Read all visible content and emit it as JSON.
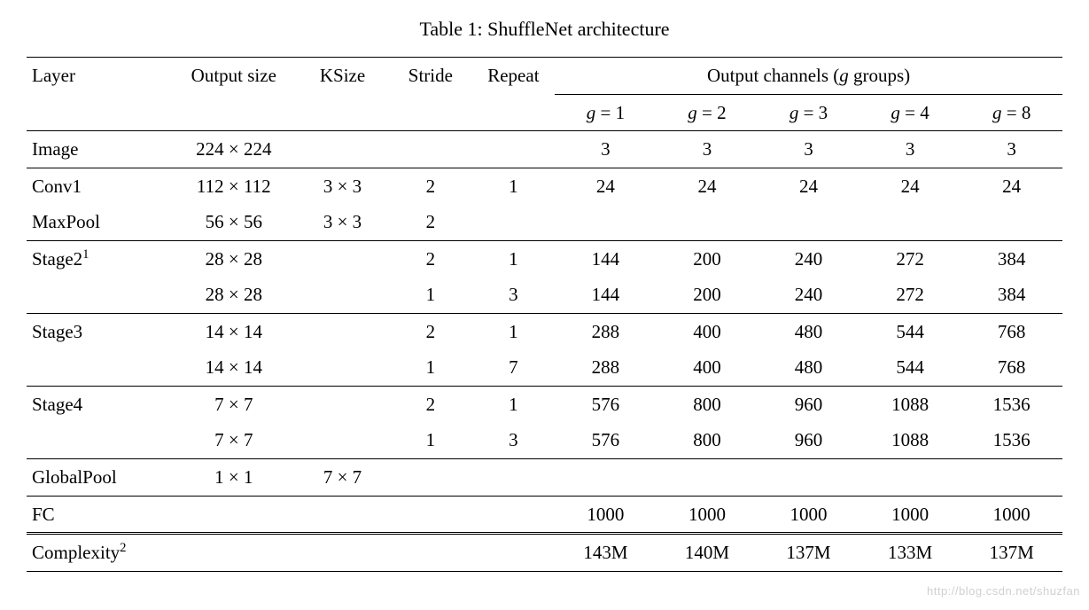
{
  "caption": "Table 1: ShuffleNet architecture",
  "headers": {
    "layer": "Layer",
    "output_size": "Output size",
    "ksize": "KSize",
    "stride": "Stride",
    "repeat": "Repeat",
    "group_title_prefix": "Output channels (",
    "group_title_var": "g",
    "group_title_suffix": " groups)",
    "g1": "g = 1",
    "g2": "g = 2",
    "g3": "g = 3",
    "g4": "g = 4",
    "g8": "g = 8"
  },
  "rows": {
    "image": {
      "layer": "Image",
      "osize": "224 × 224",
      "ksize": "",
      "stride": "",
      "repeat": "",
      "g1": "3",
      "g2": "3",
      "g3": "3",
      "g4": "3",
      "g8": "3"
    },
    "conv1": {
      "layer": "Conv1",
      "osize": "112 × 112",
      "ksize": "3 × 3",
      "stride": "2",
      "repeat": "1",
      "g1": "24",
      "g2": "24",
      "g3": "24",
      "g4": "24",
      "g8": "24"
    },
    "maxpool": {
      "layer": "MaxPool",
      "osize": "56 × 56",
      "ksize": "3 × 3",
      "stride": "2",
      "repeat": "",
      "g1": "",
      "g2": "",
      "g3": "",
      "g4": "",
      "g8": ""
    },
    "stage2a": {
      "layer_html": "Stage2",
      "sup": "1",
      "osize": "28 × 28",
      "ksize": "",
      "stride": "2",
      "repeat": "1",
      "g1": "144",
      "g2": "200",
      "g3": "240",
      "g4": "272",
      "g8": "384"
    },
    "stage2b": {
      "layer": "",
      "osize": "28 × 28",
      "ksize": "",
      "stride": "1",
      "repeat": "3",
      "g1": "144",
      "g2": "200",
      "g3": "240",
      "g4": "272",
      "g8": "384"
    },
    "stage3a": {
      "layer": "Stage3",
      "osize": "14 × 14",
      "ksize": "",
      "stride": "2",
      "repeat": "1",
      "g1": "288",
      "g2": "400",
      "g3": "480",
      "g4": "544",
      "g8": "768"
    },
    "stage3b": {
      "layer": "",
      "osize": "14 × 14",
      "ksize": "",
      "stride": "1",
      "repeat": "7",
      "g1": "288",
      "g2": "400",
      "g3": "480",
      "g4": "544",
      "g8": "768"
    },
    "stage4a": {
      "layer": "Stage4",
      "osize": "7 × 7",
      "ksize": "",
      "stride": "2",
      "repeat": "1",
      "g1": "576",
      "g2": "800",
      "g3": "960",
      "g4": "1088",
      "g8": "1536"
    },
    "stage4b": {
      "layer": "",
      "osize": "7 × 7",
      "ksize": "",
      "stride": "1",
      "repeat": "3",
      "g1": "576",
      "g2": "800",
      "g3": "960",
      "g4": "1088",
      "g8": "1536"
    },
    "globalpool": {
      "layer": "GlobalPool",
      "osize": "1 × 1",
      "ksize": "7 × 7",
      "stride": "",
      "repeat": "",
      "g1": "",
      "g2": "",
      "g3": "",
      "g4": "",
      "g8": ""
    },
    "fc": {
      "layer": "FC",
      "osize": "",
      "ksize": "",
      "stride": "",
      "repeat": "",
      "g1": "1000",
      "g2": "1000",
      "g3": "1000",
      "g4": "1000",
      "g8": "1000"
    },
    "complexity": {
      "layer_html": "Complexity",
      "sup": "2",
      "osize": "",
      "ksize": "",
      "stride": "",
      "repeat": "",
      "g1": "143M",
      "g2": "140M",
      "g3": "137M",
      "g4": "133M",
      "g8": "137M"
    }
  },
  "watermark": "http://blog.csdn.net/shuzfan",
  "style": {
    "font_family": "Times New Roman",
    "body_fontsize_pt": 16,
    "caption_fontsize_pt": 16.5,
    "text_color": "#000000",
    "background_color": "#ffffff",
    "rule_color": "#000000",
    "watermark_color": "#d0d0d0"
  }
}
